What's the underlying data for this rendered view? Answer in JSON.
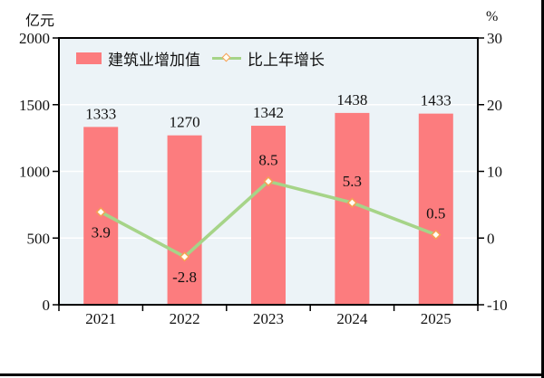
{
  "chart_data": {
    "type": "bar+line",
    "categories": [
      "2021",
      "2022",
      "2023",
      "2024",
      "2025"
    ],
    "series": [
      {
        "name": "建筑业增加值",
        "type": "bar",
        "axis": "left",
        "values": [
          1333,
          1270,
          1342,
          1438,
          1433
        ],
        "labels": [
          "1333",
          "1270",
          "1342",
          "1438",
          "1433"
        ],
        "color": "#fc7c7e"
      },
      {
        "name": "比上年增长",
        "type": "line",
        "axis": "right",
        "values": [
          3.9,
          -2.8,
          8.5,
          5.3,
          0.5
        ],
        "labels": [
          "3.9",
          "-2.8",
          "8.5",
          "5.3",
          "0.5"
        ],
        "label_positions": [
          "below",
          "below",
          "above",
          "above",
          "above"
        ],
        "color": "#a6d488",
        "marker": "diamond",
        "marker_fill": "#fffdf2",
        "marker_stroke": "#f5a054"
      }
    ],
    "left_axis": {
      "title": "亿元",
      "min": 0,
      "max": 2000,
      "step": 500,
      "ticks": [
        0,
        500,
        1000,
        1500,
        2000
      ]
    },
    "right_axis": {
      "title": "%",
      "min": -10,
      "max": 30,
      "step": 10,
      "ticks": [
        -10,
        0,
        10,
        20,
        30
      ]
    },
    "legend": [
      "建筑业增加值",
      "比上年增长"
    ],
    "legend_position": "top-left-inside",
    "grid": true,
    "plot_background": "#ecf3f7",
    "gridline_color": "#ffffff",
    "frame_color": "#000000",
    "text_color": "#111111"
  }
}
